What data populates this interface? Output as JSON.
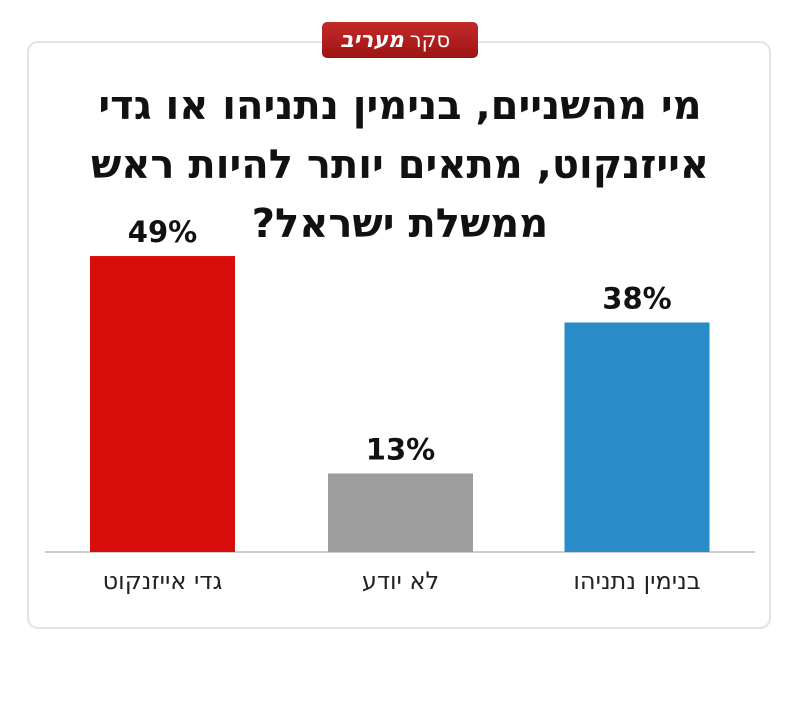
{
  "chart_data": {
    "type": "bar",
    "source_label": "סקר",
    "source_name": "מעריב",
    "title": [
      "מי מהשניים, בנימין נתניהו או גדי",
      "אייזנקוט, מתאים יותר להיות ראש",
      "ממשלת ישראל?"
    ],
    "categories": [
      "גדי אייזנקוט",
      "לא יודע",
      "בנימין נתניהו"
    ],
    "values": [
      49,
      13,
      38
    ],
    "value_labels": [
      "49%",
      "13%",
      "38%"
    ],
    "colors": [
      "#d90c0c",
      "#9d9d9d",
      "#2a8bc9"
    ]
  }
}
